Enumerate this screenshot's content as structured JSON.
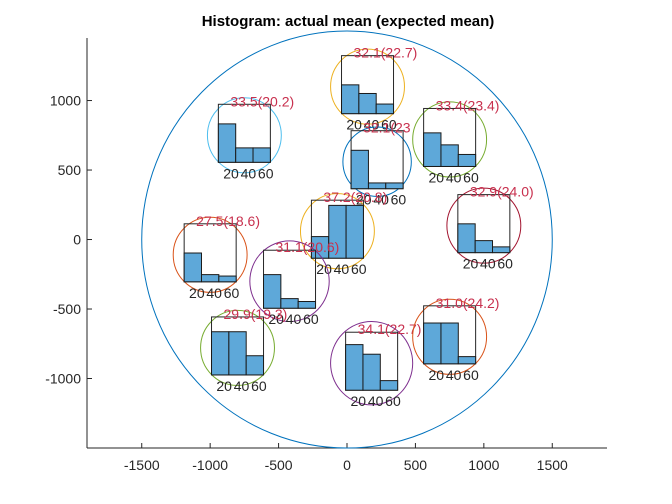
{
  "chart_data": {
    "type": "histogram-grid",
    "title": "Histogram: actual mean (expected mean)",
    "xlabel": "",
    "ylabel": "",
    "xlim": [
      -1900,
      1900
    ],
    "ylim": [
      -1500,
      1450
    ],
    "xticks": [
      -1500,
      -1000,
      -500,
      0,
      500,
      1000,
      1500
    ],
    "yticks": [
      -1000,
      -500,
      0,
      500,
      1000
    ],
    "xtick_labels": [
      "-1500",
      "-1000",
      "-500",
      "0",
      "500",
      "1000",
      "1500"
    ],
    "ytick_labels": [
      "-1000",
      "-500",
      "0",
      "500",
      "1000"
    ],
    "outer_circle": {
      "cx": 0,
      "cy": 0,
      "r": 1500,
      "color": "#0072bd"
    },
    "bar_color": "#5ea8d9",
    "bin_labels": [
      "20",
      "40",
      "60"
    ],
    "insets": [
      {
        "label": "32.1(22.7)",
        "cx": 150,
        "cy": 1100,
        "r": 270,
        "color": "#edb120",
        "bars": [
          0.6,
          0.42,
          0.2
        ]
      },
      {
        "label": "33.5(20.2)",
        "cx": -750,
        "cy": 750,
        "r": 270,
        "color": "#4dbeee",
        "bars": [
          0.8,
          0.3,
          0.3
        ]
      },
      {
        "label": "33.4(23.4)",
        "cx": 750,
        "cy": 720,
        "r": 270,
        "color": "#77ac30",
        "bars": [
          0.7,
          0.45,
          0.25
        ]
      },
      {
        "label": "32.1(23",
        "cx": 220,
        "cy": 560,
        "r": 250,
        "color": "#0072bd",
        "bars": [
          0.8,
          0.12,
          0.12
        ]
      },
      {
        "label": "37.2(20.8)",
        "cx": -70,
        "cy": 60,
        "r": 270,
        "color": "#edb120",
        "bars": [
          0.45,
          1.1,
          1.1
        ]
      },
      {
        "label": "32.9(24.0)",
        "cx": 1000,
        "cy": 100,
        "r": 270,
        "color": "#a2142f",
        "bars": [
          0.6,
          0.25,
          0.12
        ]
      },
      {
        "label": "27.5(18.6)",
        "cx": -1000,
        "cy": -110,
        "r": 270,
        "color": "#d95319",
        "bars": [
          0.6,
          0.15,
          0.12
        ]
      },
      {
        "label": "31.1(20.6)",
        "cx": -420,
        "cy": -300,
        "r": 290,
        "color": "#7e2f8e",
        "bars": [
          0.7,
          0.2,
          0.14
        ]
      },
      {
        "label": "29.9(19.3)",
        "cx": -800,
        "cy": -780,
        "r": 270,
        "color": "#77ac30",
        "bars": [
          0.9,
          0.9,
          0.4
        ]
      },
      {
        "label": "34.1(22.7)",
        "cx": 180,
        "cy": -890,
        "r": 300,
        "color": "#7e2f8e",
        "bars": [
          0.95,
          0.75,
          0.2
        ]
      },
      {
        "label": "31.0(24.2)",
        "cx": 750,
        "cy": -700,
        "r": 270,
        "color": "#d95319",
        "bars": [
          0.85,
          0.85,
          0.15
        ]
      }
    ]
  }
}
